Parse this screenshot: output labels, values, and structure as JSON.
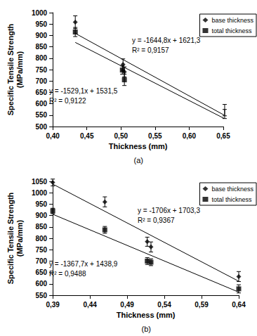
{
  "chart_data": [
    {
      "type": "scatter",
      "title": "(a)",
      "x_label": "Thickness (mm)",
      "y_label": "Specific Tensile Strength\n(MPa/mm)",
      "xlim": [
        0.4,
        0.65
      ],
      "xticks": [
        {
          "value": 0.4,
          "label": "0,40"
        },
        {
          "value": 0.45,
          "label": "0,45"
        },
        {
          "value": 0.5,
          "label": "0,50"
        },
        {
          "value": 0.55,
          "label": "0,55"
        },
        {
          "value": 0.6,
          "label": "0,60"
        },
        {
          "value": 0.65,
          "label": "0,65"
        }
      ],
      "ylim": [
        500,
        1000
      ],
      "yticks": [
        500,
        550,
        600,
        650,
        700,
        750,
        800,
        850,
        900,
        950,
        1000
      ],
      "grid": false,
      "legend": "right",
      "series": [
        {
          "name": "base thickness",
          "color": "#000000",
          "marker": "diamond",
          "x": [
            0.433,
            0.503,
            0.505,
            0.652
          ],
          "values": [
            958,
            772,
            740,
            572
          ],
          "errors": [
            28,
            25,
            22,
            25
          ],
          "trendline": {
            "slope": -1644.8,
            "intercept": 1621.3,
            "equation": "y = -1644,8x + 1621,3",
            "r_squared": "R² = 0,9157"
          }
        },
        {
          "name": "total thickness",
          "color": "#000000",
          "marker": "square",
          "x": [
            0.433,
            0.502,
            0.505,
            0.652
          ],
          "values": [
            915,
            748,
            705,
            555
          ],
          "errors": [
            20,
            18,
            25,
            20
          ],
          "trendline": {
            "slope": -1529.1,
            "intercept": 1531.5,
            "equation": "y = -1529,1x + 1531,5",
            "r_squared": "R² = 0,9122"
          }
        }
      ]
    },
    {
      "type": "scatter",
      "title": "(b)",
      "x_label": "Thickness (mm)",
      "y_label": "Specific Tensile Strength\n(MPa/mm)",
      "xlim": [
        0.39,
        0.64
      ],
      "xticks": [
        {
          "value": 0.39,
          "label": "0,39"
        },
        {
          "value": 0.44,
          "label": "0,44"
        },
        {
          "value": 0.49,
          "label": "0,49"
        },
        {
          "value": 0.54,
          "label": "0,54"
        },
        {
          "value": 0.59,
          "label": "0,59"
        },
        {
          "value": 0.64,
          "label": "0,64"
        }
      ],
      "ylim": [
        550,
        1050
      ],
      "yticks": [
        550,
        600,
        650,
        700,
        750,
        800,
        850,
        900,
        950,
        1000,
        1050
      ],
      "grid": false,
      "legend": "right",
      "series": [
        {
          "name": "base thickness",
          "color": "#000000",
          "marker": "diamond",
          "x": [
            0.39,
            0.46,
            0.517,
            0.522,
            0.64
          ],
          "values": [
            1045,
            960,
            785,
            762,
            632
          ],
          "errors": [
            15,
            22,
            20,
            22,
            22
          ],
          "trendline": {
            "slope": -1706,
            "intercept": 1703.3,
            "equation": "y = -1706x + 1703,3",
            "r_squared": "R² = 0,9367"
          }
        },
        {
          "name": "total thickness",
          "color": "#000000",
          "marker": "square",
          "x": [
            0.39,
            0.46,
            0.517,
            0.522,
            0.64
          ],
          "values": [
            920,
            837,
            700,
            695,
            578
          ],
          "errors": [
            12,
            15,
            15,
            15,
            18
          ],
          "trendline": {
            "slope": -1367.7,
            "intercept": 1438.9,
            "equation": "y = -1367,7x + 1438,9",
            "r_squared": "R² = 0,9488"
          }
        }
      ]
    }
  ]
}
